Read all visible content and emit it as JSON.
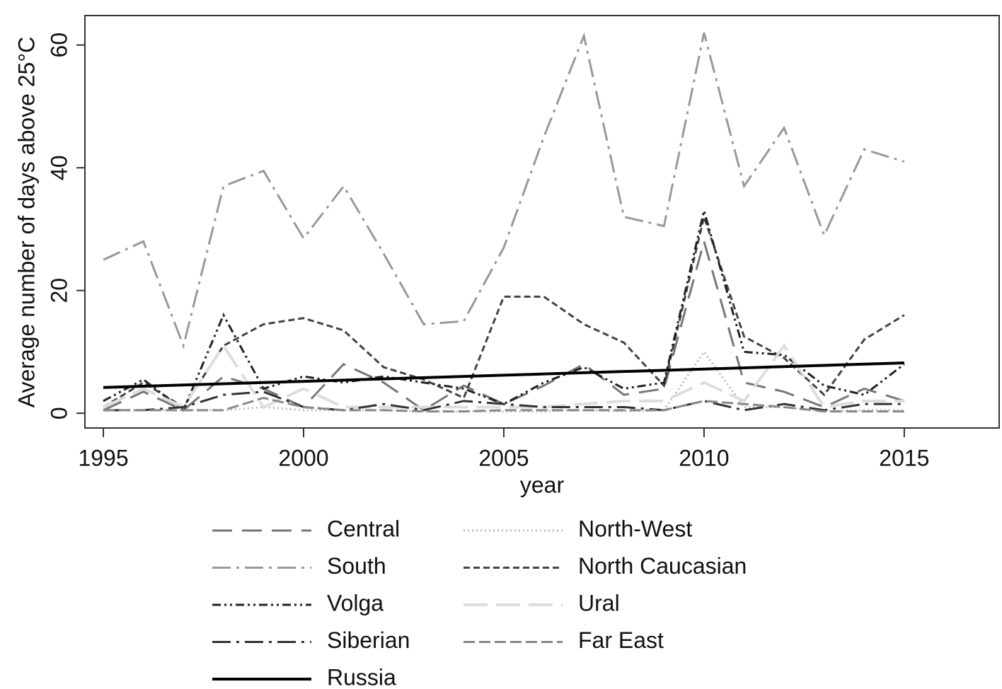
{
  "chart_data": {
    "type": "line",
    "x": [
      1995,
      1996,
      1997,
      1998,
      1999,
      2000,
      2001,
      2002,
      2003,
      2004,
      2005,
      2006,
      2007,
      2008,
      2009,
      2010,
      2011,
      2012,
      2013,
      2014,
      2015
    ],
    "xlabel": "year",
    "ylabel": "Average number of days above 25°C",
    "xlim": [
      1994.54,
      2017.37
    ],
    "ylim": [
      -2.4,
      64.8
    ],
    "xticks": [
      1995,
      2000,
      2005,
      2010,
      2015
    ],
    "yticks": [
      0,
      20,
      40,
      60
    ],
    "series": [
      {
        "name": "Central",
        "color": "#777777",
        "dash": "28,14",
        "width": 3,
        "values": [
          0.5,
          3.5,
          0.5,
          6,
          4,
          1,
          8,
          5,
          0.5,
          4.5,
          1.5,
          4.5,
          8,
          3,
          4,
          28,
          5,
          3.5,
          1,
          4,
          2
        ]
      },
      {
        "name": "North-West",
        "color": "#bbbbbb",
        "dash": "2,4",
        "width": 3,
        "values": [
          0.5,
          0.5,
          0.5,
          0.5,
          1,
          0.5,
          0.5,
          0.5,
          0.3,
          0.3,
          0.3,
          0.3,
          0.5,
          0.3,
          0.5,
          10,
          1,
          1,
          0.3,
          0.5,
          0.5
        ]
      },
      {
        "name": "South",
        "color": "#999999",
        "dash": "26,8,4,8",
        "width": 3,
        "values": [
          25,
          28,
          11,
          37,
          39.5,
          28.5,
          37,
          26,
          14.5,
          15,
          27,
          45,
          61.5,
          32,
          30.5,
          62,
          37,
          46.5,
          29,
          43,
          41
        ]
      },
      {
        "name": "North Caucasian",
        "color": "#444444",
        "dash": "9,5",
        "width": 3,
        "values": [
          1,
          5,
          1,
          11,
          14.5,
          15.5,
          13.5,
          7.5,
          5.5,
          2.5,
          19,
          19,
          14.5,
          11.5,
          4.5,
          32,
          12.5,
          9,
          3,
          12,
          16
        ]
      },
      {
        "name": "Volga",
        "color": "#222222",
        "dash": "12,5,3,5,3,5",
        "width": 3,
        "values": [
          2,
          5.5,
          0.5,
          16,
          4,
          6,
          5,
          6,
          5,
          4,
          1.5,
          5,
          7.5,
          4,
          5,
          33,
          10,
          9.5,
          4.5,
          3,
          8
        ]
      },
      {
        "name": "Ural",
        "color": "#dddddd",
        "dash": "34,12",
        "width": 4,
        "values": [
          1,
          4,
          1,
          11,
          1,
          4,
          1,
          1,
          1,
          1,
          1,
          1,
          1.5,
          2,
          2,
          5,
          2,
          11,
          1,
          2,
          2
        ]
      },
      {
        "name": "Siberian",
        "color": "#333333",
        "dash": "26,8,4,8",
        "width": 3,
        "values": [
          0.5,
          0.5,
          1,
          3,
          3.5,
          1,
          0.5,
          1.5,
          0.5,
          2,
          1.5,
          1,
          1,
          1,
          0.5,
          2,
          0.5,
          1.5,
          0.5,
          1.5,
          1.5
        ]
      },
      {
        "name": "Far East",
        "color": "#888888",
        "dash": "16,6",
        "width": 3,
        "values": [
          0.5,
          0.5,
          0.5,
          0.5,
          2.5,
          1,
          0.5,
          0.5,
          0.3,
          0.3,
          0.5,
          0.5,
          0.5,
          0.5,
          0.5,
          2,
          1.5,
          1,
          0.3,
          0.3,
          0.3
        ]
      },
      {
        "name": "Russia",
        "color": "#000000",
        "dash": "none",
        "width": 4,
        "values": [
          4.2,
          4.4,
          4.6,
          4.8,
          5,
          5.2,
          5.4,
          5.6,
          5.8,
          6,
          6.2,
          6.4,
          6.6,
          6.8,
          7,
          7.2,
          7.4,
          7.6,
          7.8,
          8,
          8.2
        ]
      }
    ]
  }
}
